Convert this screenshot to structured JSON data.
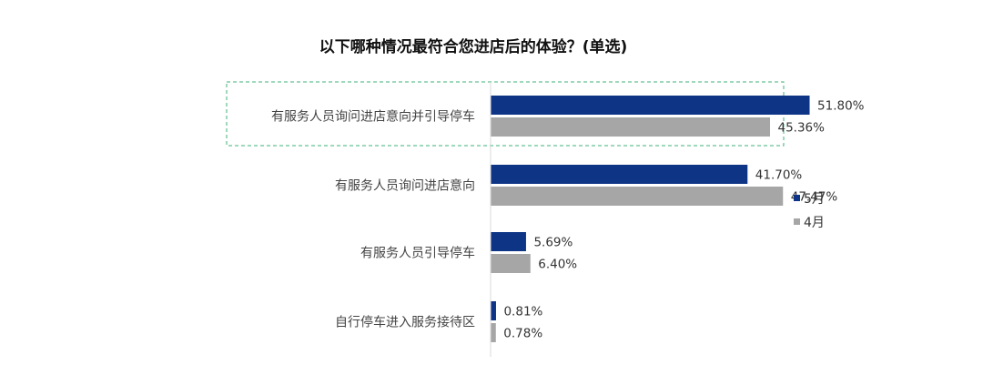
{
  "chart_data": {
    "type": "bar",
    "orientation": "horizontal",
    "title": "以下哪种情况最符合您进店后的体验？(单选)",
    "categories": [
      "有服务人员询问进店意向并引导停车",
      "有服务人员询问进店意向",
      "有服务人员引导停车",
      "自行停车进入服务接待区"
    ],
    "series": [
      {
        "name": "5月",
        "color": "#0e3585",
        "values": [
          51.8,
          41.7,
          5.69,
          0.81
        ],
        "labels": [
          "51.80%",
          "41.70%",
          "5.69%",
          "0.81%"
        ]
      },
      {
        "name": "4月",
        "color": "#a6a6a6",
        "values": [
          45.36,
          47.47,
          6.4,
          0.78
        ],
        "labels": [
          "45.36%",
          "47.47%",
          "6.40%",
          "0.78%"
        ]
      }
    ],
    "value_unit": "%",
    "xlim": [
      0,
      70
    ],
    "grid": false,
    "legend": "right",
    "highlight_category": 0,
    "highlight_color": "#3cb37a"
  }
}
